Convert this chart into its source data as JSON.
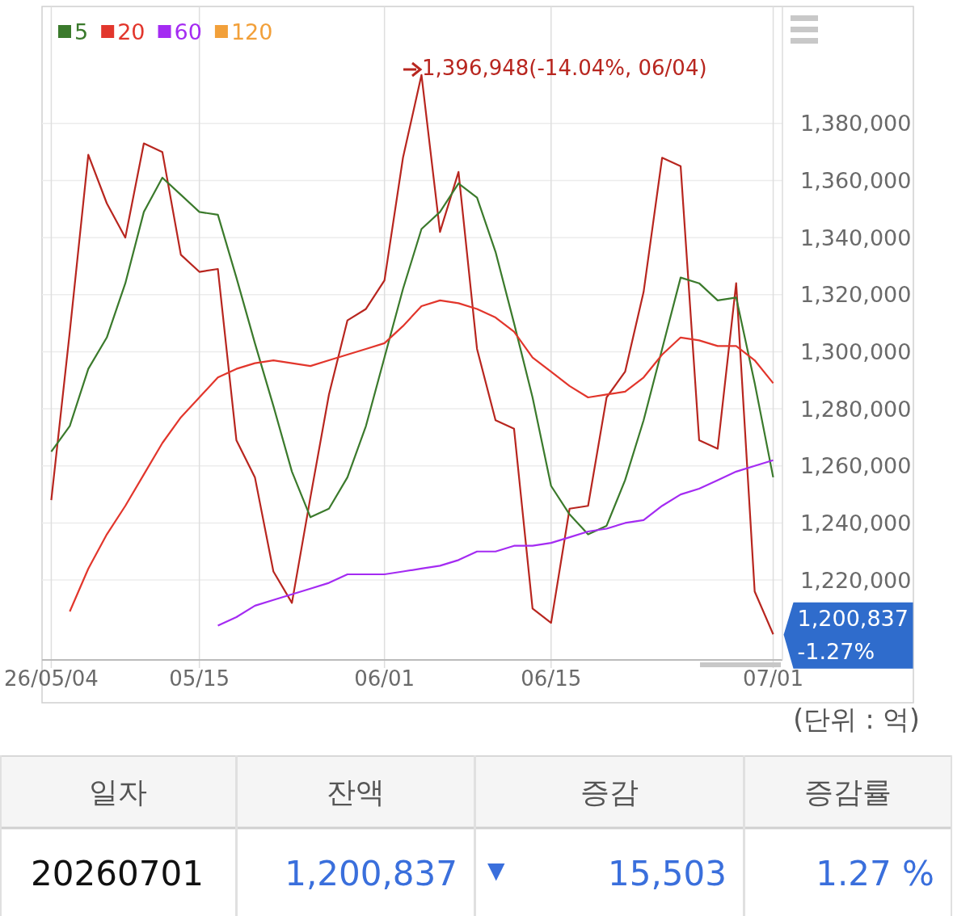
{
  "chart_data": [
    {
      "type": "line",
      "categories": [
        "26/05/04",
        null,
        null,
        null,
        null,
        null,
        null,
        null,
        "05/15",
        null,
        null,
        null,
        null,
        null,
        null,
        null,
        null,
        null,
        "06/01",
        null,
        null,
        null,
        null,
        null,
        null,
        null,
        null,
        "06/15",
        null,
        null,
        null,
        null,
        null,
        null,
        null,
        null,
        null,
        null,
        null,
        "07/01"
      ],
      "series": [
        {
          "color": "#b8261f",
          "values": [
            1248000,
            1307000,
            1369000,
            1352000,
            1340000,
            1373000,
            1370000,
            1334000,
            1328000,
            1329000,
            1269000,
            1256000,
            1223000,
            1212000,
            1249000,
            1285000,
            1311000,
            1315000,
            1325000,
            1368000,
            1397000,
            1342000,
            1363000,
            1301000,
            1276000,
            1273000,
            1210000,
            1205000,
            1245000,
            1246000,
            1284000,
            1293000,
            1321000,
            1368000,
            1365000,
            1269000,
            1266000,
            1324000,
            1216000,
            1201000
          ]
        },
        {
          "name": "5",
          "color": "#3b7a2c",
          "values": [
            1265000,
            1274000,
            1294000,
            1305000,
            1324000,
            1349000,
            1361000,
            1355000,
            1349000,
            1348000,
            1326000,
            1303000,
            1281000,
            1258000,
            1242000,
            1245000,
            1256000,
            1274000,
            1298000,
            1322000,
            1343000,
            1349000,
            1359000,
            1354000,
            1335000,
            1310000,
            1284000,
            1253000,
            1243000,
            1236000,
            1239000,
            1255000,
            1276000,
            1301000,
            1326000,
            1324000,
            1318000,
            1319000,
            1289000,
            1256000
          ]
        },
        {
          "name": "20",
          "color": "#e2362c",
          "values": [
            null,
            1209000,
            1224000,
            1236000,
            1246000,
            1257000,
            1268000,
            1277000,
            1284000,
            1291000,
            1294000,
            1296000,
            1297000,
            1296000,
            1295000,
            1297000,
            1299000,
            1301000,
            1303000,
            1309000,
            1316000,
            1318000,
            1317000,
            1315000,
            1312000,
            1307000,
            1298000,
            1293000,
            1288000,
            1284000,
            1285000,
            1286000,
            1291000,
            1299000,
            1305000,
            1304000,
            1302000,
            1302000,
            1297000,
            1289000
          ]
        },
        {
          "name": "60",
          "color": "#a42bf2",
          "values": [
            null,
            null,
            null,
            null,
            null,
            null,
            null,
            null,
            null,
            1204000,
            1207000,
            1211000,
            1213000,
            1215000,
            1217000,
            1219000,
            1222000,
            1222000,
            1222000,
            1223000,
            1224000,
            1225000,
            1227000,
            1230000,
            1230000,
            1232000,
            1232000,
            1233000,
            1235000,
            1237000,
            1238000,
            1240000,
            1241000,
            1246000,
            1250000,
            1252000,
            1255000,
            1258000,
            1260000,
            1262000
          ]
        },
        {
          "name": "120",
          "color": "#f2a03a",
          "values": [
            null,
            null,
            null,
            null,
            null,
            null,
            null,
            null,
            null,
            null,
            null,
            null,
            null,
            null,
            null,
            null,
            null,
            null,
            null,
            null,
            null,
            null,
            null,
            null,
            null,
            null,
            null,
            null,
            null,
            null,
            null,
            null,
            null,
            null,
            null,
            null,
            null,
            null,
            null,
            null
          ]
        }
      ],
      "ylim": [
        1192000,
        1421000
      ],
      "yticks": [
        {
          "value": 1220000,
          "label": "1,220,000"
        },
        {
          "value": 1240000,
          "label": "1,240,000"
        },
        {
          "value": 1260000,
          "label": "1,260,000"
        },
        {
          "value": 1280000,
          "label": "1,280,000"
        },
        {
          "value": 1300000,
          "label": "1,300,000"
        },
        {
          "value": 1320000,
          "label": "1,320,000"
        },
        {
          "value": 1340000,
          "label": "1,340,000"
        },
        {
          "value": 1360000,
          "label": "1,360,000"
        },
        {
          "value": 1380000,
          "label": "1,380,000"
        }
      ],
      "grid": true,
      "legend": "top left",
      "annotations": [
        "1,396,948(-14.04%, 06/04)",
        {
          "text": "1,200,837\n-1.27%",
          "x": "07/01",
          "y": 1200837
        },
        "(단위 : 억)"
      ]
    },
    {
      "type": "other",
      "annotations": [
        "일자",
        "잔액",
        "증감",
        "증감률",
        "20260701",
        "1,200,837",
        "▼",
        "15,503",
        "1.27 %"
      ]
    }
  ]
}
